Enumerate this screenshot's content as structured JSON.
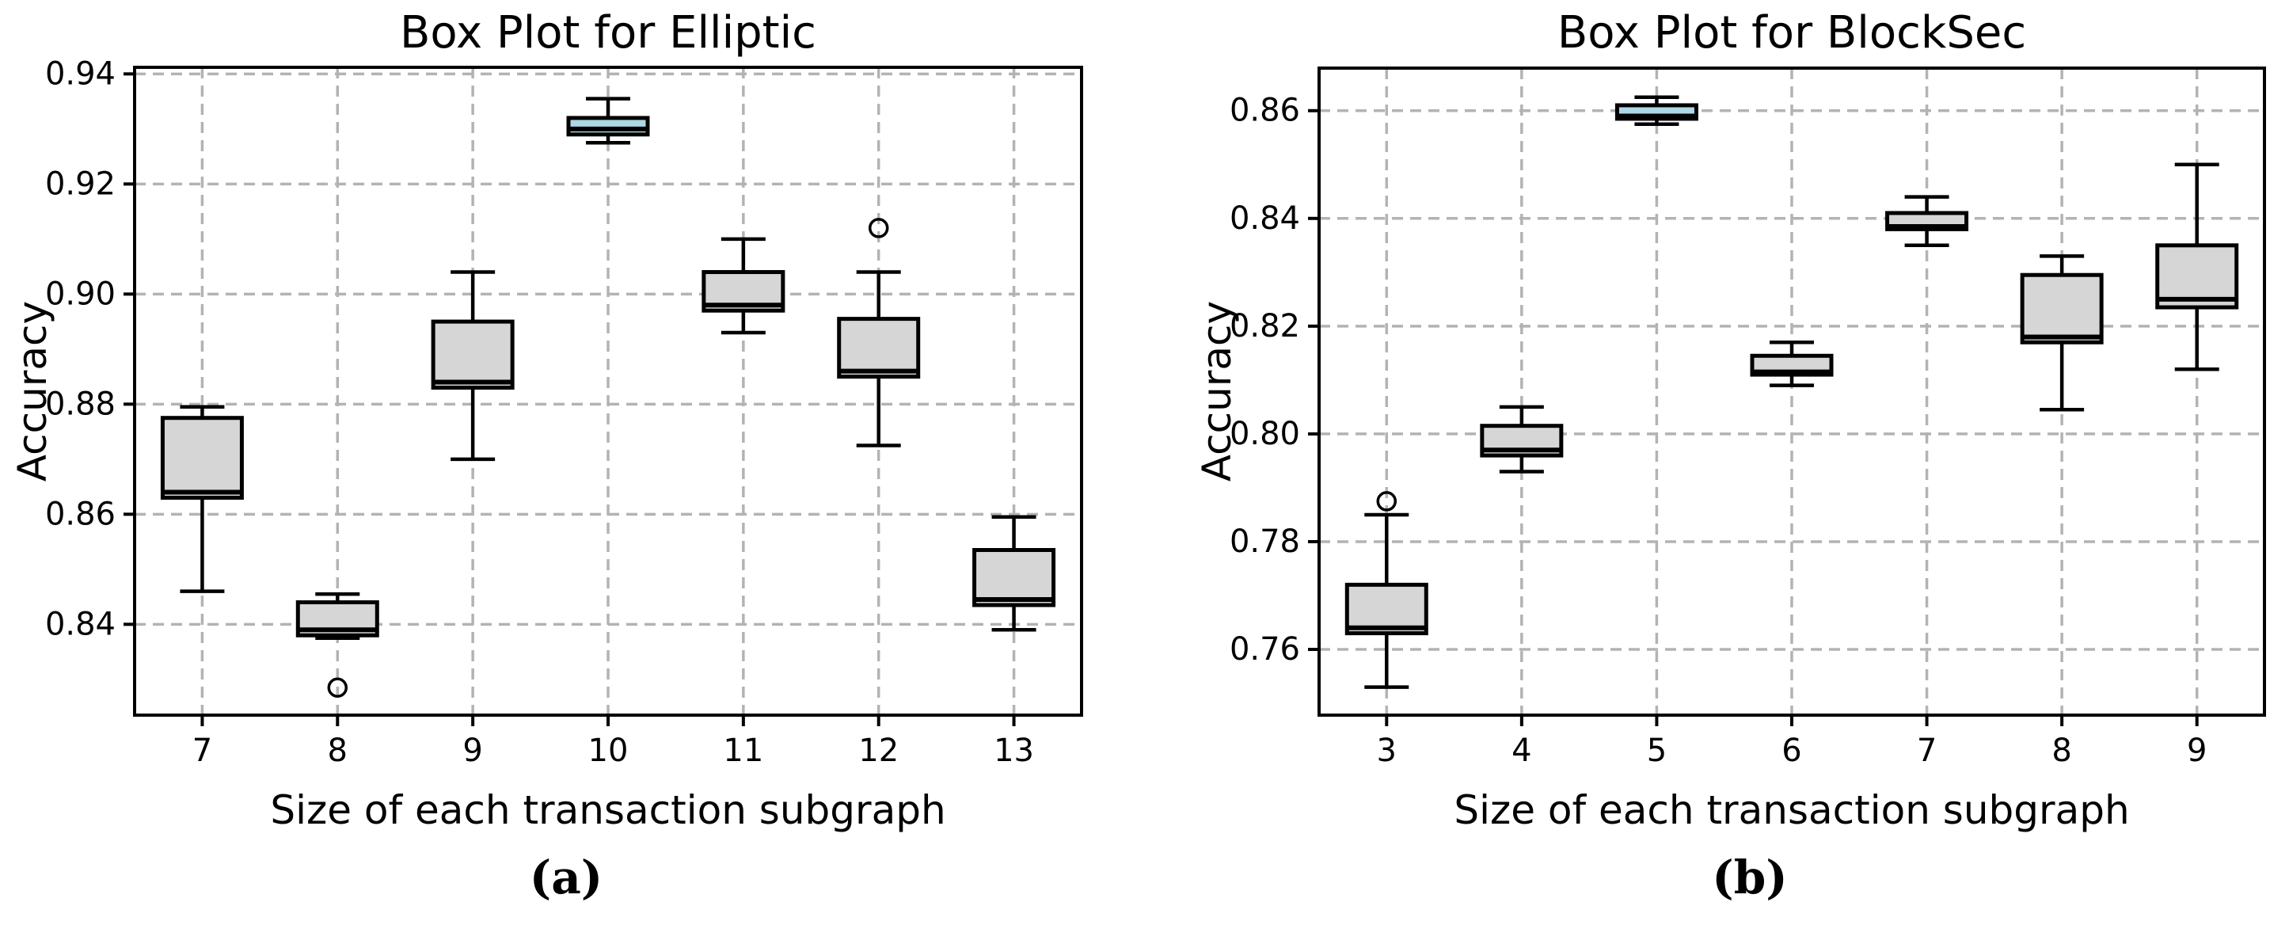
{
  "figure": {
    "background": "#ffffff",
    "captions": [
      {
        "label": "(a)"
      },
      {
        "label": "(b)"
      }
    ]
  },
  "chart_data": [
    {
      "type": "box",
      "title": "Box Plot for Elliptic",
      "xlabel": "Size of each transaction subgraph",
      "ylabel": "Accuracy",
      "categories": [
        "7",
        "8",
        "9",
        "10",
        "11",
        "12",
        "13"
      ],
      "yticks": [
        0.84,
        0.86,
        0.88,
        0.9,
        0.92,
        0.94
      ],
      "ytick_format_decimals": 2,
      "ylim": [
        0.8235,
        0.9412
      ],
      "grid": true,
      "legend": "none",
      "highlight_index": 3,
      "colors": {
        "box_fill": "#d6d6d6",
        "highlight_fill": "#add8e6",
        "edge": "#000000",
        "grid": "#b3b3b3",
        "background": "#ffffff"
      },
      "boxes": [
        {
          "category": "7",
          "whislo": 0.846,
          "q1": 0.863,
          "med": 0.864,
          "q3": 0.8775,
          "whishi": 0.8795,
          "outliers": []
        },
        {
          "category": "8",
          "whislo": 0.8375,
          "q1": 0.838,
          "med": 0.839,
          "q3": 0.844,
          "whishi": 0.8455,
          "outliers": [
            0.8285
          ]
        },
        {
          "category": "9",
          "whislo": 0.87,
          "q1": 0.883,
          "med": 0.884,
          "q3": 0.895,
          "whishi": 0.904,
          "outliers": []
        },
        {
          "category": "10",
          "whislo": 0.9275,
          "q1": 0.929,
          "med": 0.93,
          "q3": 0.932,
          "whishi": 0.9355,
          "outliers": []
        },
        {
          "category": "11",
          "whislo": 0.893,
          "q1": 0.897,
          "med": 0.898,
          "q3": 0.904,
          "whishi": 0.91,
          "outliers": []
        },
        {
          "category": "12",
          "whislo": 0.8725,
          "q1": 0.885,
          "med": 0.886,
          "q3": 0.8955,
          "whishi": 0.904,
          "outliers": [
            0.912
          ]
        },
        {
          "category": "13",
          "whislo": 0.839,
          "q1": 0.8435,
          "med": 0.8445,
          "q3": 0.8535,
          "whishi": 0.8595,
          "outliers": []
        }
      ]
    },
    {
      "type": "box",
      "title": "Box Plot for BlockSec",
      "xlabel": "Size of each transaction subgraph",
      "ylabel": "Accuracy",
      "categories": [
        "3",
        "4",
        "5",
        "6",
        "7",
        "8",
        "9"
      ],
      "yticks": [
        0.76,
        0.78,
        0.8,
        0.82,
        0.84,
        0.86
      ],
      "ytick_format_decimals": 2,
      "ylim": [
        0.7478,
        0.8679
      ],
      "grid": true,
      "legend": "none",
      "highlight_index": 2,
      "colors": {
        "box_fill": "#d6d6d6",
        "highlight_fill": "#add8e6",
        "edge": "#000000",
        "grid": "#b3b3b3",
        "background": "#ffffff"
      },
      "boxes": [
        {
          "category": "3",
          "whislo": 0.753,
          "q1": 0.763,
          "med": 0.764,
          "q3": 0.772,
          "whishi": 0.785,
          "outliers": [
            0.7875
          ]
        },
        {
          "category": "4",
          "whislo": 0.793,
          "q1": 0.796,
          "med": 0.797,
          "q3": 0.8015,
          "whishi": 0.805,
          "outliers": []
        },
        {
          "category": "5",
          "whislo": 0.8575,
          "q1": 0.8585,
          "med": 0.859,
          "q3": 0.861,
          "whishi": 0.8625,
          "outliers": []
        },
        {
          "category": "6",
          "whislo": 0.809,
          "q1": 0.811,
          "med": 0.8115,
          "q3": 0.8145,
          "whishi": 0.817,
          "outliers": []
        },
        {
          "category": "7",
          "whislo": 0.835,
          "q1": 0.838,
          "med": 0.8385,
          "q3": 0.841,
          "whishi": 0.844,
          "outliers": []
        },
        {
          "category": "8",
          "whislo": 0.8045,
          "q1": 0.817,
          "med": 0.818,
          "q3": 0.8295,
          "whishi": 0.833,
          "outliers": []
        },
        {
          "category": "9",
          "whislo": 0.812,
          "q1": 0.8235,
          "med": 0.825,
          "q3": 0.835,
          "whishi": 0.85,
          "outliers": []
        }
      ]
    }
  ]
}
